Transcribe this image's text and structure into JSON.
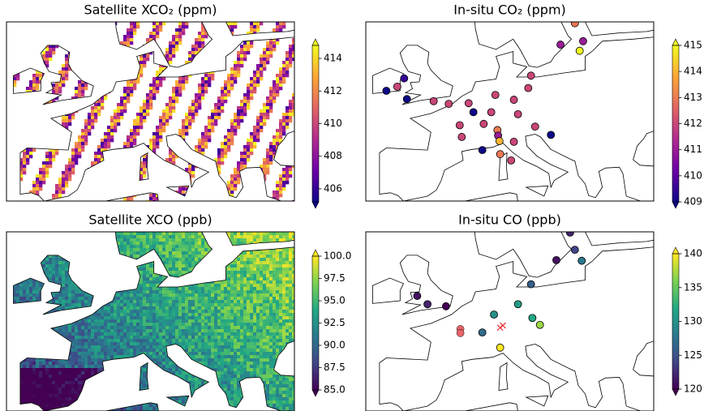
{
  "chart_data": [
    {
      "type": "heatmap",
      "title": "Satellite XCO₂ (ppm)",
      "colormap": "plasma",
      "swaths": true,
      "xlim": [
        -11,
        31
      ],
      "ylim": [
        36,
        62
      ],
      "clim": [
        405.2,
        414.8
      ],
      "cticks": [
        406,
        408,
        410,
        412,
        414
      ]
    },
    {
      "type": "scatter",
      "title": "In-situ CO₂ (ppm)",
      "colormap": "plasma",
      "xlim": [
        -11,
        31
      ],
      "ylim": [
        36,
        62
      ],
      "clim": [
        409,
        415
      ],
      "cticks": [
        409,
        410,
        411,
        412,
        413,
        414,
        415
      ],
      "lon": [
        19.5,
        20.7,
        17.4,
        20.2,
        13.1,
        -5.4,
        -8.0,
        -6.4,
        12.7,
        -5.0,
        -1.1,
        1.1,
        4.0,
        7.9,
        10.6,
        4.7,
        7.3,
        11.2,
        2.7,
        13.7,
        8.2,
        8.3,
        6.2,
        16.0,
        3.0,
        8.5,
        10.6,
        6.0,
        8.6,
        10.2
      ],
      "lat": [
        61.8,
        59.2,
        58.7,
        57.8,
        54.2,
        53.8,
        52.0,
        52.6,
        52.4,
        50.8,
        50.5,
        50.1,
        50.2,
        51.4,
        50.7,
        48.9,
        48.9,
        48.6,
        47.0,
        46.8,
        46.3,
        45.5,
        47.2,
        45.6,
        45.3,
        44.7,
        44.6,
        43.4,
        42.8,
        41.9
      ],
      "values": [
        413,
        411,
        411,
        415,
        412,
        409.5,
        409,
        412,
        412,
        409,
        412,
        412,
        412,
        412,
        412,
        409,
        412,
        412,
        412,
        412,
        413,
        411,
        412,
        409,
        412,
        414,
        412,
        409,
        413,
        412
      ]
    },
    {
      "type": "heatmap",
      "title": "Satellite XCO (ppb)",
      "colormap": "viridis",
      "swaths": false,
      "xlim": [
        -11,
        31
      ],
      "ylim": [
        36,
        62
      ],
      "clim": [
        85,
        100
      ],
      "cticks": [
        {
          "value": 85,
          "label": "85.0"
        },
        {
          "value": 87.5,
          "label": "87.5"
        },
        {
          "value": 90,
          "label": "90.0"
        },
        {
          "value": 92.5,
          "label": "92.5"
        },
        {
          "value": 95,
          "label": "95.0"
        },
        {
          "value": 97.5,
          "label": "97.5"
        },
        {
          "value": 100,
          "label": "100.0"
        }
      ]
    },
    {
      "type": "scatter",
      "title": "In-situ CO (ppb)",
      "colormap": "viridis",
      "xlim": [
        -11,
        31
      ],
      "ylim": [
        36,
        62
      ],
      "clim": [
        120,
        140
      ],
      "cticks": [
        120,
        125,
        130,
        135,
        140
      ],
      "lon": [
        18.8,
        19.5,
        16.8,
        20.5,
        13.1,
        -3.5,
        -2.0,
        0.7,
        11.2,
        13.3,
        7.7,
        6.0,
        14.4,
        8.6
      ],
      "lat": [
        61.9,
        59.4,
        57.9,
        57.8,
        54.4,
        52.7,
        51.5,
        51.2,
        51.5,
        49.5,
        50.0,
        47.4,
        48.5,
        45.2
      ],
      "values": [
        122,
        124,
        121,
        128,
        126,
        121,
        122,
        120,
        131,
        132,
        130,
        127,
        137,
        140
      ],
      "extra_markers": [
        {
          "marker": "o",
          "color": "#e8656b",
          "lon": [
            2.8,
            2.8
          ],
          "lat": [
            47.9,
            47.3
          ]
        },
        {
          "marker": "x",
          "color": "#e8383d",
          "lon": [
            9.0,
            8.6
          ],
          "lat": [
            48.4,
            48.1
          ]
        }
      ]
    }
  ]
}
